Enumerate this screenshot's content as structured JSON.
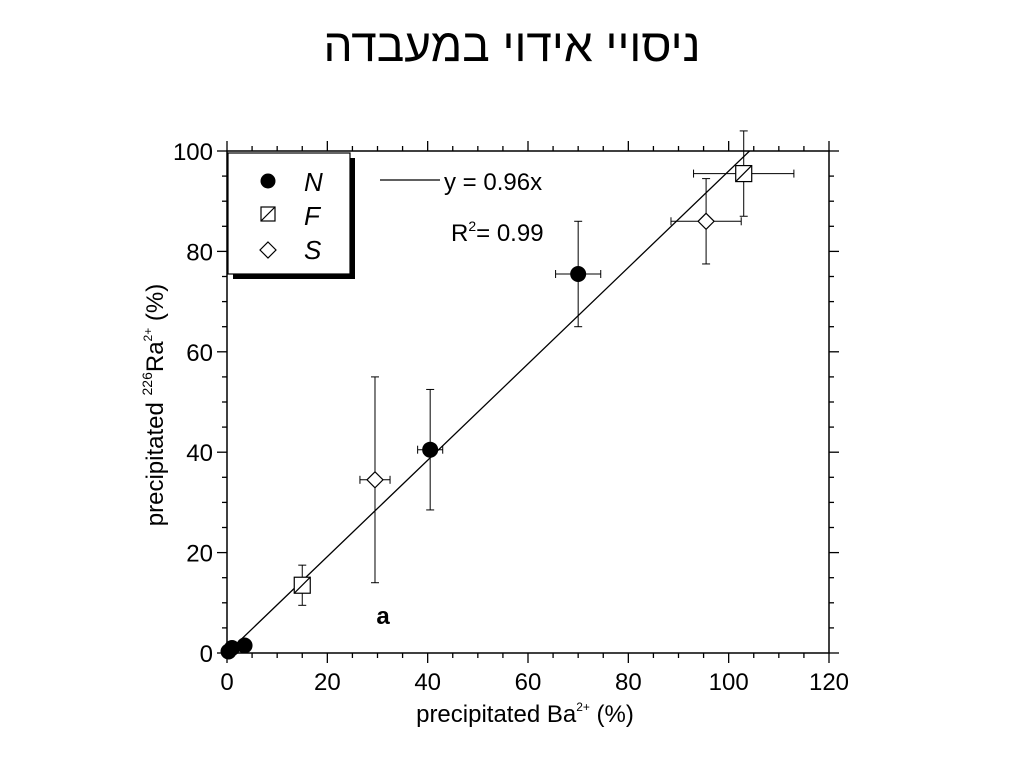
{
  "slide": {
    "title": "ניסויי אידוי במעבדה"
  },
  "chart_data": {
    "type": "scatter",
    "xlabel": {
      "text": "precipitated Ba",
      "sup": "2+",
      "unit": " (%)"
    },
    "ylabel": {
      "text": "precipitated ",
      "pre_sup": "226",
      "base": "Ra",
      "sup": "2+",
      "unit": " (%)"
    },
    "xlim": [
      0,
      120
    ],
    "ylim": [
      0,
      100
    ],
    "xticks": [
      0,
      20,
      40,
      60,
      80,
      100,
      120
    ],
    "yticks": [
      0,
      20,
      40,
      60,
      80,
      100
    ],
    "grid": false,
    "legend": {
      "placement": "top-left",
      "entries": [
        "N",
        "F",
        "S"
      ]
    },
    "fit": {
      "label": "y = 0.96x",
      "slope": 0.96,
      "r2_base": "R",
      "r2_sup": "2",
      "r2_value": "= 0.99"
    },
    "panel_label": "a",
    "series": [
      {
        "name": "N",
        "marker": "filled-circle",
        "points": [
          {
            "x": 0.3,
            "y": 0.3
          },
          {
            "x": 1,
            "y": 1
          },
          {
            "x": 3.5,
            "y": 1.5
          },
          {
            "x": 40.5,
            "y": 40.5,
            "xerr": 2.5,
            "yerr": 12
          },
          {
            "x": 70,
            "y": 75.5,
            "xerr": 4.5,
            "yerr": 10.5
          }
        ]
      },
      {
        "name": "F",
        "marker": "hatched-square",
        "points": [
          {
            "x": 15,
            "y": 13.5,
            "xerr": 1.5,
            "yerr": 4
          },
          {
            "x": 103,
            "y": 95.5,
            "xerr": 10,
            "yerr": 8.5
          }
        ]
      },
      {
        "name": "S",
        "marker": "open-diamond",
        "points": [
          {
            "x": 29.5,
            "y": 34.5,
            "xerr": 3,
            "yerr": 20.5
          },
          {
            "x": 95.5,
            "y": 86,
            "xerr": 7,
            "yerr": 8.5
          }
        ]
      }
    ]
  }
}
